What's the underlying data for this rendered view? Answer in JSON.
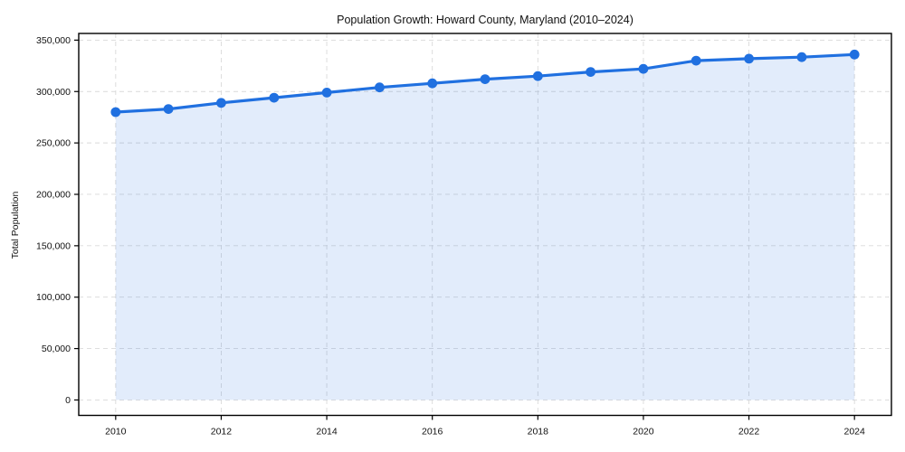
{
  "chart_data": {
    "type": "area",
    "title": "Population Growth: Howard County, Maryland (2010–2024)",
    "xlabel": "",
    "ylabel": "Total Population",
    "x": [
      2010,
      2011,
      2012,
      2013,
      2014,
      2015,
      2016,
      2017,
      2018,
      2019,
      2020,
      2021,
      2022,
      2023,
      2024
    ],
    "series": [
      {
        "name": "Total Population",
        "values": [
          280000,
          283000,
          289000,
          294000,
          299000,
          304000,
          308000,
          312000,
          315000,
          319000,
          322000,
          330000,
          332000,
          333500,
          336000
        ]
      }
    ],
    "x_ticks": [
      {
        "v": 2010,
        "label": "2010"
      },
      {
        "v": 2012,
        "label": "2012"
      },
      {
        "v": 2014,
        "label": "2014"
      },
      {
        "v": 2016,
        "label": "2016"
      },
      {
        "v": 2018,
        "label": "2018"
      },
      {
        "v": 2020,
        "label": "2020"
      },
      {
        "v": 2022,
        "label": "2022"
      },
      {
        "v": 2024,
        "label": "2024"
      }
    ],
    "y_ticks": [
      {
        "v": 0,
        "label": "0"
      },
      {
        "v": 50000,
        "label": "50,000"
      },
      {
        "v": 100000,
        "label": "100,000"
      },
      {
        "v": 150000,
        "label": "150,000"
      },
      {
        "v": 200000,
        "label": "200,000"
      },
      {
        "v": 250000,
        "label": "250,000"
      },
      {
        "v": 300000,
        "label": "300,000"
      },
      {
        "v": 350000,
        "label": "350,000"
      }
    ],
    "xlim": [
      2009.3,
      2024.7
    ],
    "ylim": [
      -15000,
      356500
    ],
    "grid": true,
    "grid_style": "dashed",
    "legend": false,
    "line_color": "#2070e0",
    "fill_color": "rgba(32, 112, 224, 0.13)",
    "grid_color": "#d9d9d9",
    "axis_color": "#000000",
    "text_color": "#111111",
    "marker": "circle"
  }
}
